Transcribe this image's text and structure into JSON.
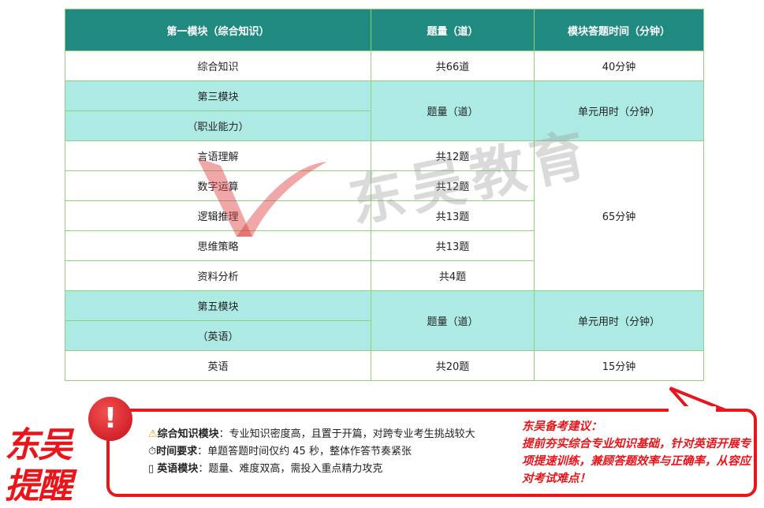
{
  "table": {
    "headers": [
      "第一模块（综合知识）",
      "题量（道）",
      "模块答题时间（分钟）"
    ],
    "r1": [
      "综合知识",
      "共66道",
      "40分钟"
    ],
    "m3": {
      "name": "第三模块",
      "sub": "（职业能力）",
      "count_h": "题量（道）",
      "time_h": "单元用时（分钟）"
    },
    "m3rows": [
      [
        "言语理解",
        "共12题"
      ],
      [
        "数字运算",
        "共12题"
      ],
      [
        "逻辑推理",
        "共13题"
      ],
      [
        "思维策略",
        "共13题"
      ],
      [
        "资料分析",
        "共4题"
      ]
    ],
    "m3time": "65分钟",
    "m5": {
      "name": "第五模块",
      "sub": "（英语）",
      "count_h": "题量（道）",
      "time_h": "单元用时（分钟）"
    },
    "r_en": [
      "英语",
      "共20题",
      "15分钟"
    ]
  },
  "watermark": "东吴教育",
  "reminder": {
    "title1": "东吴",
    "title2": "提醒",
    "bang": "!",
    "tips": [
      {
        "icon": "warning-icon",
        "glyph": "⚠",
        "label": "综合知识模块",
        "text": "：专业知识密度高，且置于开篇，对跨专业考生挑战较大"
      },
      {
        "icon": "stopwatch-icon",
        "glyph": "⏱",
        "label": "时间要求",
        "text": "：单题答题时间仅约  45  秒，整体作答节奏紧张"
      },
      {
        "icon": "missing-glyph-icon",
        "glyph": "▯",
        "label": "英语模块",
        "text": "：题量、难度双高，需投入重点精力攻克"
      }
    ],
    "advice_title": "东吴备考建议：",
    "advice": "提前夯实综合专业知识基础，针对英语开展专项提速训练，兼顾答题效率与正确率，从容应对考试难点！"
  },
  "colors": {
    "header": "#218a80",
    "cyan": "#aeeae4",
    "border": "#8fd07a",
    "red": "#e8151b"
  }
}
